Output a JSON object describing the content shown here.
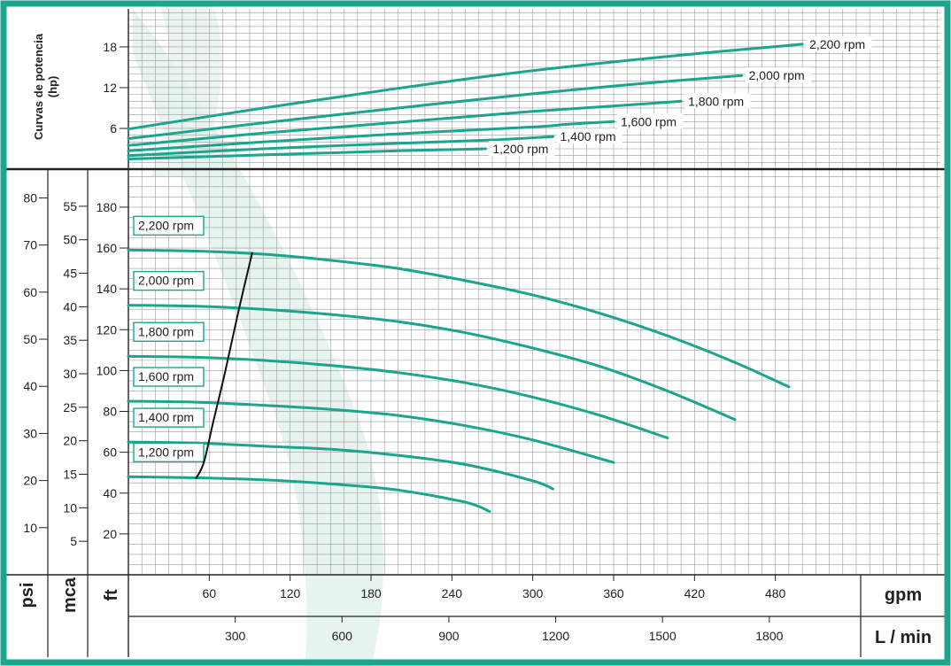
{
  "colors": {
    "frame": "#1aa58c",
    "curve": "#1aa58c",
    "watermark": "#e7f3ee",
    "grid": "#9a9a9a",
    "axis": "#222222",
    "npsh": "#111111"
  },
  "chart_data": [
    {
      "type": "line",
      "panel": "power",
      "ylabel": "Curvas de potencia",
      "yunit": "(hp)",
      "yticks": [
        6,
        12,
        18
      ],
      "ylim": [
        0,
        22
      ],
      "xlim": [
        0,
        500
      ],
      "grid": true,
      "series": [
        {
          "name": "2,200 rpm",
          "x": [
            0,
            100,
            200,
            300,
            400,
            500
          ],
          "y": [
            5.9,
            9.0,
            11.9,
            14.5,
            16.6,
            18.4
          ]
        },
        {
          "name": "2,000 rpm",
          "x": [
            0,
            100,
            200,
            300,
            375,
            455
          ],
          "y": [
            4.5,
            6.8,
            9.0,
            11.1,
            12.5,
            13.8
          ]
        },
        {
          "name": "1,800 rpm",
          "x": [
            0,
            100,
            200,
            300,
            375,
            410
          ],
          "y": [
            3.5,
            5.3,
            6.9,
            8.5,
            9.5,
            10.0
          ]
        },
        {
          "name": "1,600 rpm",
          "x": [
            0,
            100,
            200,
            300,
            325,
            360
          ],
          "y": [
            2.7,
            4.0,
            5.2,
            6.2,
            6.6,
            7.0
          ]
        },
        {
          "name": "1,400 rpm",
          "x": [
            0,
            100,
            200,
            270,
            315
          ],
          "y": [
            2.0,
            3.0,
            3.8,
            4.3,
            4.8
          ]
        },
        {
          "name": "1,200 rpm",
          "x": [
            0,
            100,
            200,
            265
          ],
          "y": [
            1.5,
            2.1,
            2.7,
            3.0
          ]
        }
      ]
    },
    {
      "type": "line",
      "panel": "head",
      "xlabel": "gpm",
      "xlabel2": "L / min",
      "ylabel_ft": "ft",
      "ylabel_mca": "mca",
      "ylabel_psi": "psi",
      "xticks": [
        60,
        120,
        180,
        240,
        300,
        360,
        420,
        480
      ],
      "xticks_lmin": [
        300,
        600,
        900,
        1200,
        1500,
        1800
      ],
      "yticks_ft": [
        20,
        40,
        60,
        80,
        100,
        120,
        140,
        160,
        180
      ],
      "yticks_mca": [
        5,
        10,
        15,
        20,
        25,
        30,
        35,
        40,
        45,
        50,
        55
      ],
      "yticks_psi": [
        10,
        20,
        30,
        40,
        50,
        60,
        70,
        80
      ],
      "xlim": [
        0,
        600
      ],
      "ylim_ft": [
        0,
        190
      ],
      "grid": true,
      "series": [
        {
          "name": "2,200 rpm",
          "x": [
            0,
            50,
            100,
            150,
            200,
            250,
            300,
            350,
            400,
            450,
            490
          ],
          "y": [
            159,
            158.5,
            157,
            154,
            150,
            144,
            137,
            128,
            117,
            104,
            92
          ]
        },
        {
          "name": "2,000 rpm",
          "x": [
            0,
            50,
            100,
            150,
            200,
            250,
            300,
            350,
            400,
            450
          ],
          "y": [
            132,
            131.5,
            130,
            127.5,
            124,
            118.5,
            111,
            102,
            90,
            76
          ]
        },
        {
          "name": "1,800 rpm",
          "x": [
            0,
            50,
            100,
            150,
            200,
            250,
            300,
            350,
            400
          ],
          "y": [
            107,
            106.5,
            105,
            102.5,
            99,
            94,
            87,
            78,
            67
          ]
        },
        {
          "name": "1,600 rpm",
          "x": [
            0,
            50,
            100,
            150,
            200,
            250,
            300,
            360
          ],
          "y": [
            85,
            84.5,
            83,
            81,
            78,
            73,
            66,
            55
          ]
        },
        {
          "name": "1,400 rpm",
          "x": [
            0,
            50,
            100,
            150,
            200,
            250,
            300,
            315
          ],
          "y": [
            65,
            64.5,
            63,
            61.5,
            58.5,
            54,
            46,
            42
          ]
        },
        {
          "name": "1,200 rpm",
          "x": [
            0,
            50,
            100,
            150,
            200,
            250,
            268
          ],
          "y": [
            48,
            47.5,
            46.5,
            44.5,
            41.5,
            35.5,
            31
          ]
        },
        {
          "name": "",
          "x": [
            50,
            56,
            63,
            72,
            82,
            92
          ],
          "y": [
            47,
            55,
            75,
            100,
            130,
            158
          ]
        }
      ]
    }
  ]
}
